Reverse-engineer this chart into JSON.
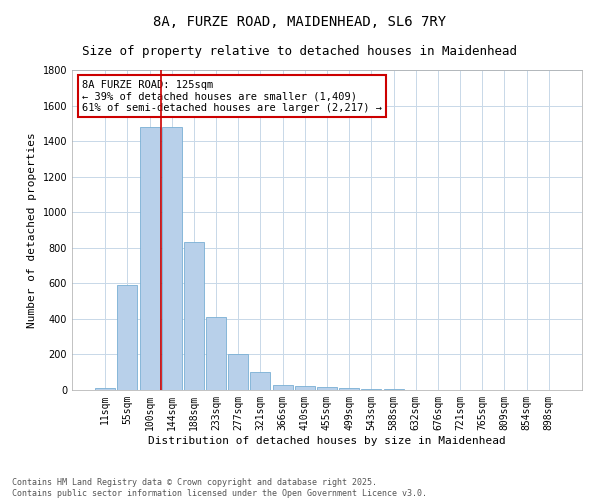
{
  "title1": "8A, FURZE ROAD, MAIDENHEAD, SL6 7RY",
  "title2": "Size of property relative to detached houses in Maidenhead",
  "xlabel": "Distribution of detached houses by size in Maidenhead",
  "ylabel": "Number of detached properties",
  "categories": [
    "11sqm",
    "55sqm",
    "100sqm",
    "144sqm",
    "188sqm",
    "233sqm",
    "277sqm",
    "321sqm",
    "366sqm",
    "410sqm",
    "455sqm",
    "499sqm",
    "543sqm",
    "588sqm",
    "632sqm",
    "676sqm",
    "721sqm",
    "765sqm",
    "809sqm",
    "854sqm",
    "898sqm"
  ],
  "values": [
    10,
    590,
    1480,
    1480,
    830,
    410,
    200,
    100,
    30,
    20,
    15,
    10,
    5,
    3,
    2,
    2,
    1,
    1,
    1,
    1,
    1
  ],
  "bar_color": "#b8d0ea",
  "bar_edge_color": "#7aafd4",
  "ylim": [
    0,
    1800
  ],
  "yticks": [
    0,
    200,
    400,
    600,
    800,
    1000,
    1200,
    1400,
    1600,
    1800
  ],
  "property_line_x": 2.5,
  "annotation_line1": "8A FURZE ROAD: 125sqm",
  "annotation_line2": "← 39% of detached houses are smaller (1,409)",
  "annotation_line3": "61% of semi-detached houses are larger (2,217) →",
  "annotation_box_color": "#cc0000",
  "footer": "Contains HM Land Registry data © Crown copyright and database right 2025.\nContains public sector information licensed under the Open Government Licence v3.0.",
  "background_color": "#ffffff",
  "grid_color": "#c8d8e8",
  "title1_fontsize": 10,
  "title2_fontsize": 9,
  "tick_fontsize": 7,
  "ylabel_fontsize": 8,
  "xlabel_fontsize": 8,
  "annotation_fontsize": 7.5,
  "footer_fontsize": 6
}
